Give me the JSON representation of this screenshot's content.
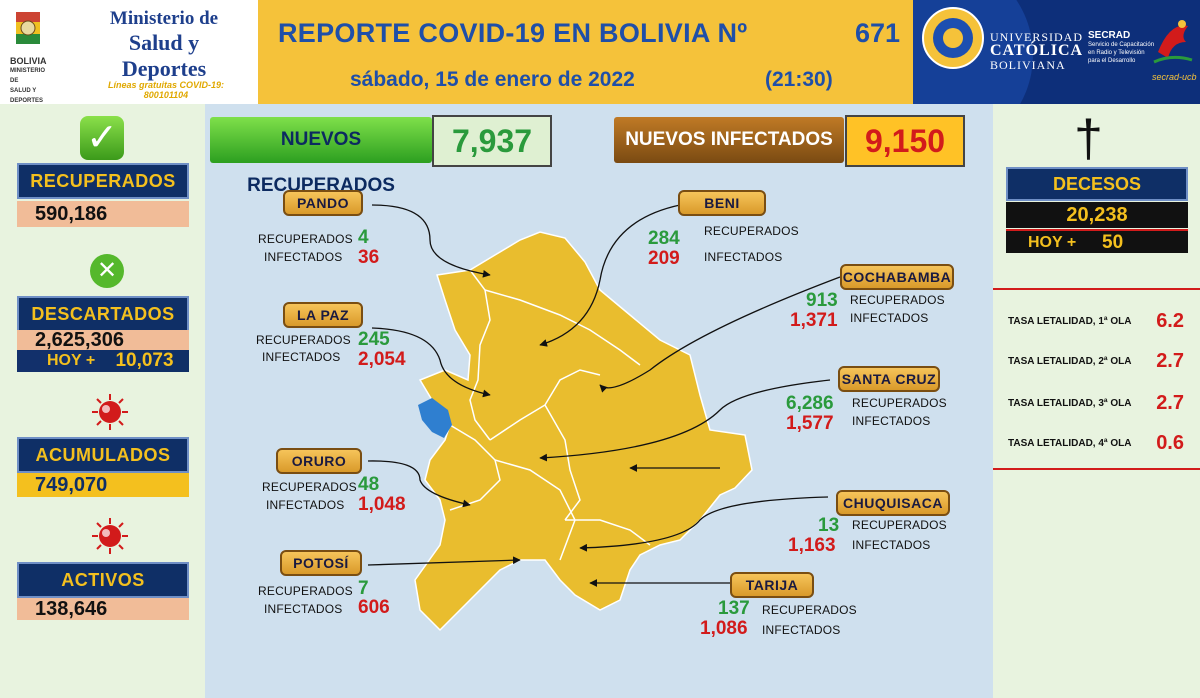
{
  "header": {
    "title": "REPORTE COVID-19 EN BOLIVIA Nº",
    "report_number": "671",
    "date": "sábado, 15 de enero de 2022",
    "time": "(21:30)"
  },
  "ministry": {
    "line1": "Ministerio de",
    "line2": "Salud y Deportes",
    "hotline": "Líneas gratuitas COVID-19: 800101104",
    "small_text": "BOLIVIA",
    "small_text2": "MINISTERIO DE SALUD Y DEPORTES"
  },
  "university": {
    "line1": "UNIVERSIDAD",
    "line2": "CATÓLICA",
    "line3": "BOLIVIANA",
    "secrad_name": "SECRAD",
    "secrad_desc": "Servicio de Capacitación en Radio y Televisión para el Desarrollo",
    "secrad_logo_text": "secrad-ucb"
  },
  "left": {
    "recuperados_label": "RECUPERADOS",
    "recuperados_value": "590,186",
    "descartados_label": "DESCARTADOS",
    "descartados_value": "2,625,306",
    "descartados_hoy_label": "HOY +",
    "descartados_hoy_value": "10,073",
    "acumulados_label": "ACUMULADOS",
    "acumulados_value": "749,070",
    "activos_label": "ACTIVOS",
    "activos_value": "138,646"
  },
  "summary": {
    "nuevos_recuperados_label": "NUEVOS RECUPERADOS",
    "nuevos_recuperados_value": "7,937",
    "nuevos_infectados_label": "NUEVOS INFECTADOS",
    "nuevos_infectados_value": "9,150"
  },
  "labels": {
    "recuperados": "RECUPERADOS",
    "infectados": "INFECTADOS"
  },
  "departments": [
    {
      "name": "PANDO",
      "recuperados": "4",
      "infectados": "36"
    },
    {
      "name": "LA PAZ",
      "recuperados": "245",
      "infectados": "2,054"
    },
    {
      "name": "ORURO",
      "recuperados": "48",
      "infectados": "1,048"
    },
    {
      "name": "POTOSÍ",
      "recuperados": "7",
      "infectados": "606"
    },
    {
      "name": "BENI",
      "recuperados": "284",
      "infectados": "209"
    },
    {
      "name": "COCHABAMBA",
      "recuperados": "913",
      "infectados": "1,371"
    },
    {
      "name": "SANTA CRUZ",
      "recuperados": "6,286",
      "infectados": "1,577"
    },
    {
      "name": "CHUQUISACA",
      "recuperados": "13",
      "infectados": "1,163"
    },
    {
      "name": "TARIJA",
      "recuperados": "137",
      "infectados": "1,086"
    }
  ],
  "right": {
    "decesos_label": "DECESOS",
    "decesos_value": "20,238",
    "hoy_label": "HOY +",
    "hoy_value": "50",
    "tasas": [
      {
        "label": "TASA LETALIDAD, 1ª OLA",
        "value": "6.2"
      },
      {
        "label": "TASA LETALIDAD, 2ª OLA",
        "value": "2.7"
      },
      {
        "label": "TASA LETALIDAD, 3ª OLA",
        "value": "2.7"
      },
      {
        "label": "TASA LETALIDAD, 4ª OLA",
        "value": "0.6"
      }
    ]
  },
  "colors": {
    "header_yellow": "#f5c23a",
    "navy": "#0f2f66",
    "green": "#2a9a3c",
    "red": "#d21b1b",
    "map_yellow": "#e9bd2e",
    "lake_blue": "#2f7fd0"
  },
  "icons": [
    "check-icon",
    "x-icon",
    "virus-icon",
    "cross-icon",
    "arrow-icon"
  ]
}
